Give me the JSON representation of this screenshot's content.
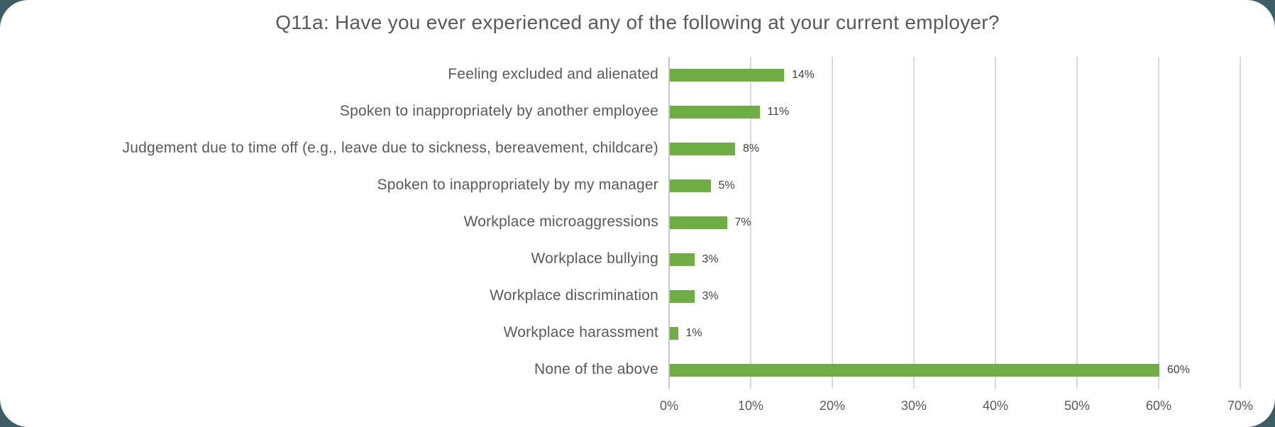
{
  "chart_data": {
    "type": "bar",
    "orientation": "horizontal",
    "title": "Q11a: Have you ever experienced any of the following at your current employer?",
    "categories": [
      "Feeling excluded and alienated",
      "Spoken to inappropriately by another employee",
      "Judgement due to time off (e.g., leave due to sickness, bereavement, childcare)",
      "Spoken to inappropriately by my manager",
      "Workplace microaggressions",
      "Workplace bullying",
      "Workplace discrimination",
      "Workplace harassment",
      "None of the above"
    ],
    "values": [
      14,
      11,
      8,
      5,
      7,
      3,
      3,
      1,
      60
    ],
    "value_labels": [
      "14%",
      "11%",
      "8%",
      "5%",
      "7%",
      "3%",
      "3%",
      "1%",
      "60%"
    ],
    "x_axis": {
      "min": 0,
      "max": 70,
      "tick_step": 10,
      "tick_values": [
        0,
        10,
        20,
        30,
        40,
        50,
        60,
        70
      ],
      "tick_labels": [
        "0%",
        "10%",
        "20%",
        "30%",
        "40%",
        "50%",
        "60%",
        "70%"
      ]
    },
    "grid": true,
    "legend": false,
    "colors": {
      "bar": "#6fae44",
      "title_text": "#595959",
      "category_text": "#595959",
      "value_text": "#404040",
      "tick_text": "#595959",
      "gridline": "#d9d9d9",
      "axis_line": "#c6c6c6",
      "card_background": "#ffffff",
      "page_background": "#3e5d66"
    }
  }
}
